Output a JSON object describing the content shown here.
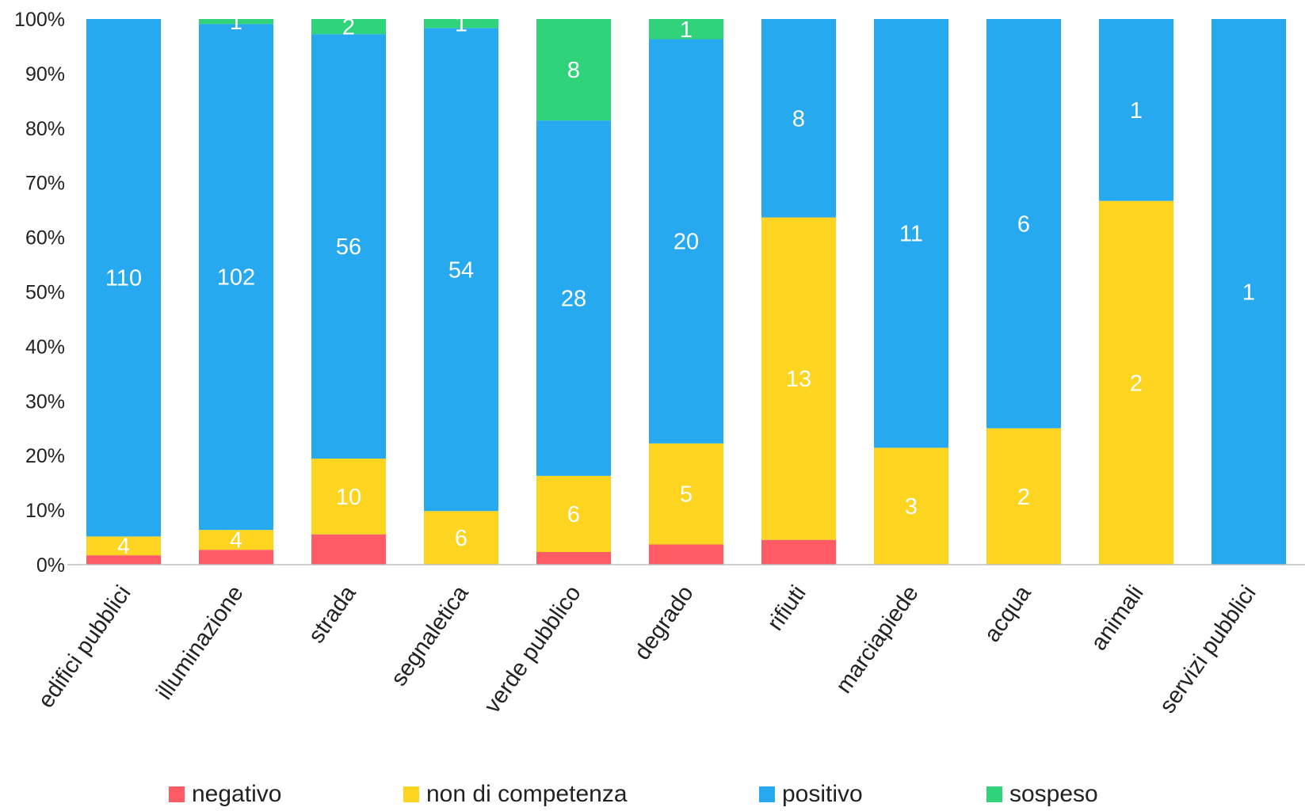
{
  "chart_data": {
    "type": "bar",
    "stacked": true,
    "normalized": true,
    "categories": [
      "edifici pubblici",
      "illuminazione",
      "strada",
      "segnaletica",
      "verde pubblico",
      "degrado",
      "rifiuti",
      "marciapiede",
      "acqua",
      "animali",
      "servizi pubblici"
    ],
    "series": [
      {
        "name": "negativo",
        "color": "#ff5b65",
        "values": [
          2,
          3,
          4,
          0,
          1,
          1,
          1,
          0,
          0,
          0,
          0
        ]
      },
      {
        "name": "non di competenza",
        "color": "#fdd41f",
        "values": [
          4,
          4,
          10,
          6,
          6,
          5,
          13,
          3,
          2,
          2,
          0
        ]
      },
      {
        "name": "positivo",
        "color": "#27a9f0",
        "values": [
          110,
          102,
          56,
          54,
          28,
          20,
          8,
          11,
          6,
          1,
          1
        ]
      },
      {
        "name": "sospeso",
        "color": "#30d27a",
        "values": [
          0,
          1,
          2,
          1,
          8,
          1,
          0,
          0,
          0,
          0,
          0
        ]
      }
    ],
    "data_labels": [
      [
        null,
        null,
        null,
        null,
        null,
        null,
        null,
        null,
        null,
        null,
        null
      ],
      [
        "4",
        "4",
        "10",
        "6",
        "6",
        "5",
        "13",
        "3",
        "2",
        "2",
        null
      ],
      [
        "110",
        "102",
        "56",
        "54",
        "28",
        "20",
        "8",
        "11",
        "6",
        "1",
        "1"
      ],
      [
        null,
        "1",
        "2",
        "1",
        "8",
        "1",
        null,
        null,
        null,
        null,
        null
      ]
    ],
    "y_ticks": [
      "0%",
      "10%",
      "20%",
      "30%",
      "40%",
      "50%",
      "60%",
      "70%",
      "80%",
      "90%",
      "100%"
    ],
    "ylim": [
      0,
      100
    ],
    "grid": false,
    "legend_position": "bottom",
    "title": "",
    "xlabel": "",
    "ylabel": ""
  }
}
